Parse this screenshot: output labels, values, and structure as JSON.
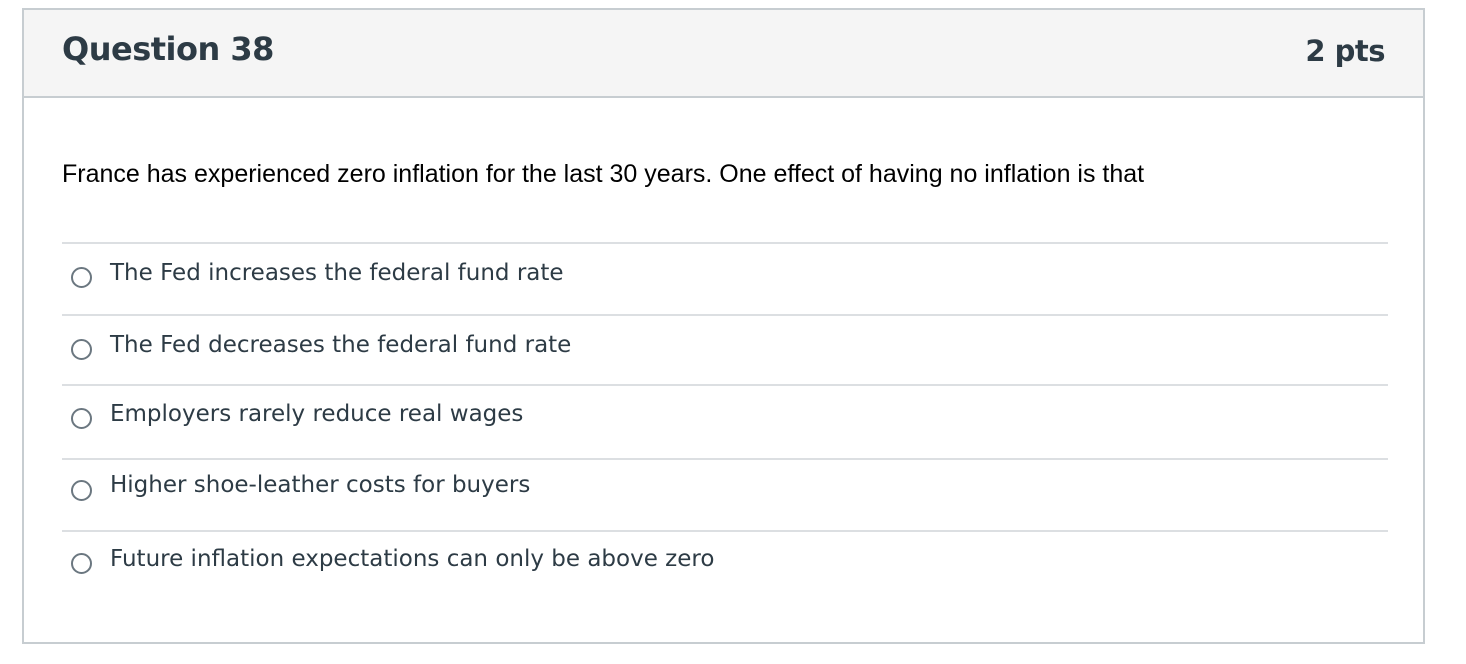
{
  "question": {
    "title": "Question 38",
    "points": "2 pts",
    "text": "France has experienced zero inflation for the last 30 years. One effect of having no inflation is that",
    "answers": [
      {
        "label": "The Fed increases the federal fund rate"
      },
      {
        "label": "The Fed decreases the federal fund rate"
      },
      {
        "label": "Employers rarely reduce real wages"
      },
      {
        "label": "Higher shoe-leather costs for buyers"
      },
      {
        "label": "Future inflation expectations can only be above zero"
      }
    ]
  },
  "colors": {
    "header_bg": "#f5f5f5",
    "border": "#c7cdd1",
    "text_dark": "#2d3b45",
    "divider": "#dcdfe2"
  }
}
